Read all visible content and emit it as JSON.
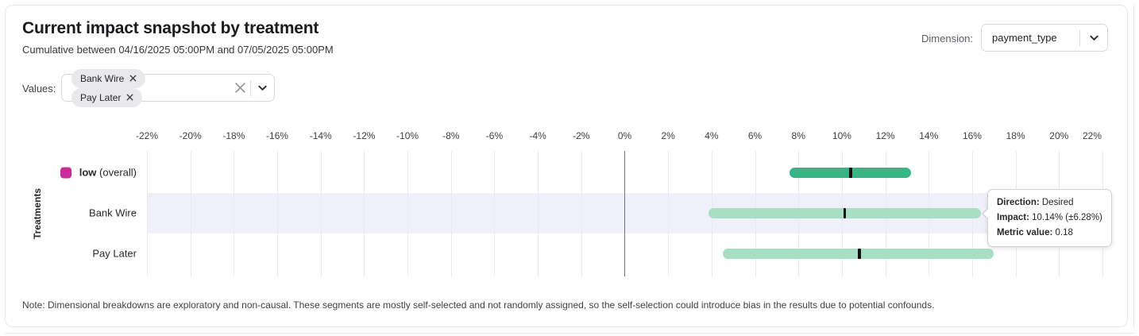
{
  "header": {
    "title": "Current impact snapshot by treatment",
    "subtitle": "Cumulative between 04/16/2025 05:00PM and 07/05/2025 05:00PM"
  },
  "dimension_control": {
    "label": "Dimension:",
    "selected": "payment_type"
  },
  "values_control": {
    "label": "Values:",
    "chips": [
      "Bank Wire",
      "Pay Later"
    ]
  },
  "chart_data": {
    "type": "bar",
    "orientation": "horizontal",
    "title": "",
    "xlabel": "",
    "ylabel": "Treatments",
    "x_unit": "%",
    "xlim": [
      -22,
      22
    ],
    "tick_step": 2,
    "ticks": [
      "-22%",
      "-20%",
      "-18%",
      "-16%",
      "-14%",
      "-12%",
      "-10%",
      "-8%",
      "-6%",
      "-4%",
      "-2%",
      "0%",
      "2%",
      "4%",
      "6%",
      "8%",
      "10%",
      "12%",
      "14%",
      "16%",
      "18%",
      "20%",
      "22%"
    ],
    "grid": true,
    "gridline_color": "#e9e9ee",
    "zero_line_color": "#717278",
    "highlight_band_color": "#f0f0fb",
    "point_marker_color": "#101114",
    "rows": [
      {
        "label": "low",
        "label_suffix": " (overall)",
        "label_bold": true,
        "swatch_color": "#cb2b9a",
        "bar_color": "#35b684",
        "ci_low": 7.6,
        "ci_high": 13.2,
        "point": 10.4,
        "highlighted": false
      },
      {
        "label": "Bank Wire",
        "label_suffix": "",
        "label_bold": false,
        "swatch_color": "",
        "bar_color": "#a8dec1",
        "ci_low": 3.86,
        "ci_high": 16.42,
        "point": 10.14,
        "highlighted": true
      },
      {
        "label": "Pay Later",
        "label_suffix": "",
        "label_bold": false,
        "swatch_color": "",
        "bar_color": "#a8dec1",
        "ci_low": 4.5,
        "ci_high": 17.0,
        "point": 10.8,
        "highlighted": false
      }
    ]
  },
  "tooltip": {
    "anchor_row": "Bank Wire",
    "rows": [
      {
        "label": "Direction:",
        "value": "Desired"
      },
      {
        "label": "Impact:",
        "value": "10.14% (±6.28%)"
      },
      {
        "label": "Metric value:",
        "value": "0.18"
      }
    ]
  },
  "note": "Note: Dimensional breakdowns are exploratory and non-causal. These segments are mostly self-selected and not randomly assigned, so the self-selection could introduce bias in the results due to potential confounds."
}
